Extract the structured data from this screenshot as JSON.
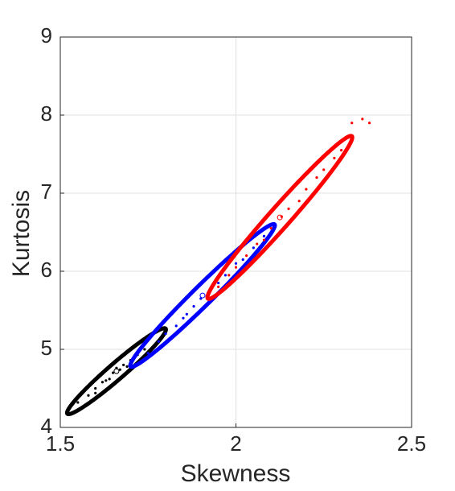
{
  "chart_data": {
    "type": "scatter",
    "xlabel": "Skewness",
    "ylabel": "Kurtosis",
    "xlim": [
      1.5,
      2.5
    ],
    "xticks": [
      1.5,
      2,
      2.5
    ],
    "ylim": [
      4,
      9
    ],
    "yticks": [
      4,
      5,
      6,
      7,
      8,
      9
    ],
    "grid": true,
    "series": [
      {
        "color": "#000000",
        "x": [
          1.55,
          1.58,
          1.6,
          1.62,
          1.64,
          1.65,
          1.67,
          1.68,
          1.7,
          1.72,
          1.74,
          1.6,
          1.66,
          1.63,
          1.69
        ],
        "y": [
          4.32,
          4.41,
          4.5,
          4.58,
          4.62,
          4.7,
          4.74,
          4.8,
          4.86,
          4.93,
          5.0,
          4.44,
          4.76,
          4.6,
          4.78
        ],
        "ellipse": {
          "center": [
            1.66,
            4.72
          ],
          "major": [
            0.14,
            0.545
          ],
          "minor": [
            0.015,
            -0.077
          ]
        }
      },
      {
        "color": "#0000ff",
        "x": [
          1.75,
          1.78,
          1.8,
          1.83,
          1.85,
          1.88,
          1.9,
          1.92,
          1.95,
          1.97,
          2.0,
          2.02,
          2.05,
          1.86,
          1.93,
          2.08
        ],
        "y": [
          4.95,
          5.1,
          5.2,
          5.3,
          5.4,
          5.55,
          5.65,
          5.72,
          5.85,
          5.95,
          6.1,
          6.15,
          6.3,
          5.45,
          5.8,
          6.45
        ],
        "ellipse": {
          "center": [
            1.905,
            5.69
          ],
          "major": [
            0.205,
            0.91
          ],
          "minor": [
            0.019,
            -0.089
          ]
        }
      },
      {
        "color": "#ff0000",
        "x": [
          1.95,
          1.98,
          2.0,
          2.03,
          2.06,
          2.08,
          2.1,
          2.13,
          2.15,
          2.18,
          2.2,
          2.23,
          2.25,
          2.28,
          2.3,
          2.33,
          2.36,
          2.38
        ],
        "y": [
          5.8,
          5.95,
          6.05,
          6.2,
          6.35,
          6.4,
          6.55,
          6.7,
          6.8,
          6.9,
          7.05,
          7.2,
          7.3,
          7.45,
          7.55,
          7.9,
          7.95,
          7.9
        ],
        "ellipse": {
          "center": [
            2.125,
            6.69
          ],
          "major": [
            0.205,
            1.04
          ],
          "minor": [
            0.022,
            -0.09
          ]
        }
      }
    ]
  }
}
